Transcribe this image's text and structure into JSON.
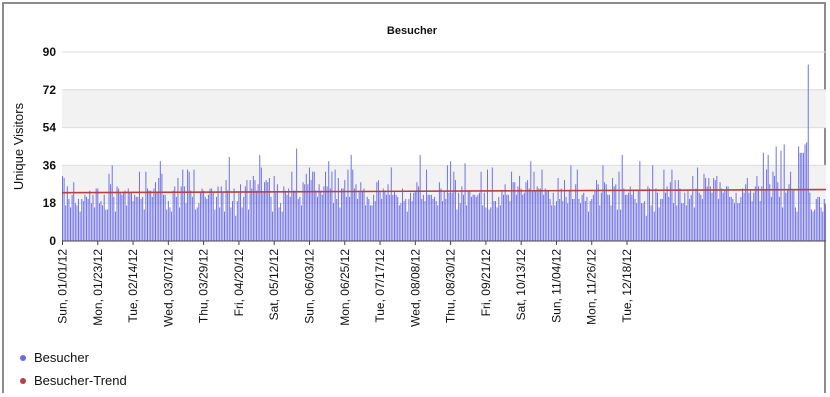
{
  "chart_data": {
    "type": "bar",
    "title": "Besucher",
    "ylabel": "Unique Visitors",
    "xlabel": "",
    "ylim": [
      0,
      90
    ],
    "yticks": [
      0,
      18,
      36,
      54,
      72,
      90
    ],
    "grid": true,
    "legend_position": "bottom-left",
    "x_start": "2012-01-01",
    "x_end": "2012-12-31",
    "xtick_labels": [
      "Sun, 01/01/12",
      "Mon, 01/23/12",
      "Tue, 02/14/12",
      "Wed, 03/07/12",
      "Thu, 03/29/12",
      "Fri, 04/20/12",
      "Sat, 05/12/12",
      "Sun, 06/03/12",
      "Mon, 06/25/12",
      "Tue, 07/17/12",
      "Wed, 08/08/12",
      "Thu, 08/30/12",
      "Fri, 09/21/12",
      "Sat, 10/13/12",
      "Sun, 11/04/12",
      "Mon, 11/26/12",
      "Tue, 12/18/12"
    ],
    "series": [
      {
        "name": "Besucher",
        "type": "bar",
        "color": "#7070e6",
        "values": [
          31,
          30,
          17,
          26,
          20,
          16,
          22,
          28,
          18,
          17,
          20,
          14,
          20,
          19,
          22,
          21,
          20,
          24,
          18,
          22,
          16,
          25,
          25,
          18,
          19,
          17,
          22,
          15,
          15,
          32,
          27,
          36,
          21,
          14,
          26,
          25,
          23,
          22,
          23,
          24,
          17,
          25,
          23,
          23,
          19,
          22,
          21,
          21,
          33,
          20,
          21,
          15,
          33,
          25,
          24,
          24,
          21,
          25,
          28,
          23,
          30,
          38,
          32,
          22,
          22,
          15,
          19,
          16,
          14,
          24,
          26,
          21,
          30,
          16,
          26,
          34,
          26,
          18,
          34,
          33,
          24,
          21,
          34,
          15,
          16,
          18,
          23,
          25,
          24,
          21,
          20,
          22,
          25,
          25,
          23,
          15,
          21,
          26,
          16,
          26,
          23,
          14,
          29,
          24,
          40,
          16,
          19,
          25,
          12,
          19,
          23,
          27,
          16,
          21,
          26,
          29,
          15,
          29,
          25,
          31,
          29,
          24,
          27,
          41,
          35,
          23,
          28,
          29,
          28,
          30,
          21,
          14,
          31,
          23,
          27,
          16,
          18,
          14,
          26,
          24,
          22,
          25,
          21,
          33,
          24,
          24,
          44,
          20,
          21,
          17,
          28,
          27,
          32,
          27,
          35,
          29,
          33,
          33,
          24,
          21,
          27,
          24,
          22,
          26,
          33,
          26,
          38,
          25,
          33,
          18,
          34,
          20,
          30,
          16,
          25,
          25,
          29,
          21,
          34,
          21,
          41,
          34,
          25,
          27,
          20,
          24,
          28,
          24,
          25,
          17,
          21,
          20,
          17,
          17,
          22,
          19,
          28,
          29,
          24,
          20,
          25,
          24,
          22,
          27,
          22,
          35,
          22,
          24,
          22,
          21,
          17,
          18,
          25,
          19,
          20,
          14,
          20,
          23,
          19,
          23,
          24,
          28,
          26,
          41,
          20,
          22,
          19,
          34,
          22,
          22,
          22,
          20,
          21,
          19,
          17,
          28,
          25,
          19,
          24,
          20,
          36,
          23,
          38,
          23,
          33,
          29,
          15,
          23,
          18,
          26,
          22,
          37,
          17,
          24,
          24,
          21,
          22,
          22,
          21,
          22,
          23,
          33,
          17,
          23,
          16,
          34,
          15,
          16,
          35,
          19,
          19,
          16,
          21,
          17,
          24,
          22,
          27,
          22,
          22,
          19,
          33,
          28,
          28,
          22,
          26,
          31,
          25,
          22,
          23,
          28,
          29,
          25,
          38,
          24,
          33,
          24,
          26,
          25,
          25,
          34,
          22,
          25,
          24,
          24,
          20,
          17,
          23,
          17,
          19,
          30,
          20,
          25,
          19,
          29,
          21,
          18,
          24,
          36,
          20,
          20,
          27,
          34,
          20,
          18,
          22,
          23,
          19,
          21,
          14,
          19,
          20,
          22,
          24,
          29,
          27,
          17,
          23,
          36,
          28,
          27,
          22,
          22,
          17,
          30,
          26,
          27,
          15,
          33,
          15,
          41,
          25,
          22,
          22,
          23,
          26,
          22,
          24,
          20,
          18,
          24,
          38,
          18,
          18,
          19,
          12,
          26,
          25,
          17,
          36,
          14,
          25,
          23,
          16,
          20,
          20,
          34,
          23,
          26,
          21,
          28,
          34,
          18,
          29,
          17,
          29,
          25,
          18,
          18,
          23,
          17,
          24,
          20,
          22,
          31,
          16,
          25,
          35,
          23,
          22,
          20,
          32,
          30,
          26,
          30,
          26,
          23,
          30,
          29,
          31,
          20,
          28,
          25,
          23,
          24,
          26,
          26,
          21,
          21,
          20,
          18,
          23,
          18,
          18,
          21,
          25,
          23,
          27,
          30,
          23,
          24,
          19,
          23,
          26,
          31,
          26,
          19,
          26,
          42,
          24,
          34,
          41,
          27,
          21,
          33,
          31,
          45,
          28,
          21,
          43,
          16,
          46,
          23,
          24,
          27,
          33,
          24,
          24,
          16,
          14,
          45,
          42,
          42,
          42,
          46,
          47,
          84,
          23,
          15,
          14,
          15,
          20,
          21,
          21,
          16,
          14,
          20,
          17
        ]
      },
      {
        "name": "Besucher-Trend",
        "type": "line",
        "color": "#b84040",
        "values": [
          23,
          24.5
        ]
      }
    ]
  }
}
